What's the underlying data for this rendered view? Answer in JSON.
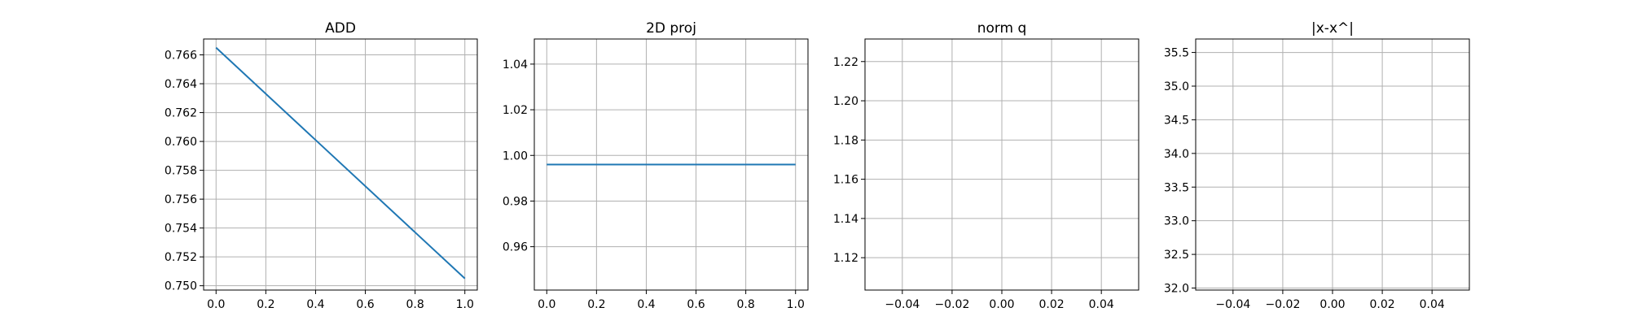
{
  "figure": {
    "background": "#ffffff"
  },
  "chart_data": [
    {
      "type": "line",
      "title": "ADD",
      "xlabel": "",
      "ylabel": "",
      "xlim": [
        -0.05,
        1.05
      ],
      "ylim": [
        0.7497,
        0.7671
      ],
      "xticks": [
        0.0,
        0.2,
        0.4,
        0.6,
        0.8,
        1.0
      ],
      "xtick_labels": [
        "0.0",
        "0.2",
        "0.4",
        "0.6",
        "0.8",
        "1.0"
      ],
      "yticks": [
        0.75,
        0.752,
        0.754,
        0.756,
        0.758,
        0.76,
        0.762,
        0.764,
        0.766
      ],
      "ytick_labels": [
        "0.750",
        "0.752",
        "0.754",
        "0.756",
        "0.758",
        "0.760",
        "0.762",
        "0.764",
        "0.766"
      ],
      "grid": true,
      "series": [
        {
          "color": "#1f77b4",
          "x": [
            0,
            1
          ],
          "y": [
            0.7665,
            0.7505
          ]
        }
      ]
    },
    {
      "type": "line",
      "title": "2D proj",
      "xlabel": "",
      "ylabel": "",
      "xlim": [
        -0.05,
        1.05
      ],
      "ylim": [
        0.941,
        1.051
      ],
      "xticks": [
        0.0,
        0.2,
        0.4,
        0.6,
        0.8,
        1.0
      ],
      "xtick_labels": [
        "0.0",
        "0.2",
        "0.4",
        "0.6",
        "0.8",
        "1.0"
      ],
      "yticks": [
        0.96,
        0.98,
        1.0,
        1.02,
        1.04
      ],
      "ytick_labels": [
        "0.96",
        "0.98",
        "1.00",
        "1.02",
        "1.04"
      ],
      "grid": true,
      "series": [
        {
          "color": "#1f77b4",
          "x": [
            0,
            1
          ],
          "y": [
            0.996,
            0.996
          ]
        }
      ]
    },
    {
      "type": "line",
      "title": "norm q",
      "xlabel": "",
      "ylabel": "",
      "xlim": [
        -0.055,
        0.055
      ],
      "ylim": [
        1.1035,
        1.2315
      ],
      "xticks": [
        -0.04,
        -0.02,
        0.0,
        0.02,
        0.04
      ],
      "xtick_labels": [
        "−0.04",
        "−0.02",
        "0.00",
        "0.02",
        "0.04"
      ],
      "yticks": [
        1.12,
        1.14,
        1.16,
        1.18,
        1.2,
        1.22
      ],
      "ytick_labels": [
        "1.12",
        "1.14",
        "1.16",
        "1.18",
        "1.20",
        "1.22"
      ],
      "grid": true,
      "series": []
    },
    {
      "type": "line",
      "title": "|x-x^|",
      "xlabel": "",
      "ylabel": "",
      "xlim": [
        -0.055,
        0.055
      ],
      "ylim": [
        31.97,
        35.7
      ],
      "xticks": [
        -0.04,
        -0.02,
        0.0,
        0.02,
        0.04
      ],
      "xtick_labels": [
        "−0.04",
        "−0.02",
        "0.00",
        "0.02",
        "0.04"
      ],
      "yticks": [
        32.0,
        32.5,
        33.0,
        33.5,
        34.0,
        34.5,
        35.0,
        35.5
      ],
      "ytick_labels": [
        "32.0",
        "32.5",
        "33.0",
        "33.5",
        "34.0",
        "34.5",
        "35.0",
        "35.5"
      ],
      "grid": true,
      "series": []
    }
  ]
}
